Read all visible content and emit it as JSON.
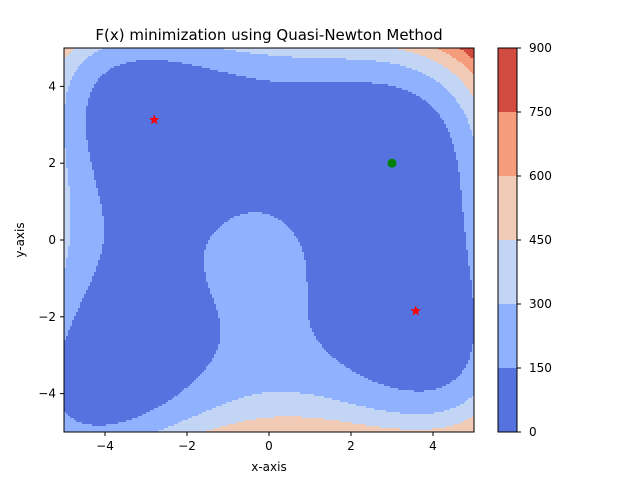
{
  "chart_data": {
    "type": "contour",
    "title": "F(x) minimization using Quasi-Newton Method",
    "xlabel": "x-axis",
    "ylabel": "y-axis",
    "xlim": [
      -5,
      5
    ],
    "ylim": [
      -5,
      5
    ],
    "x_ticks": [
      -4,
      -2,
      0,
      2,
      4
    ],
    "y_ticks": [
      -4,
      -2,
      0,
      2,
      4
    ],
    "grid": false,
    "function": "(x^2 + y - 11)^2 + (x + y^2 - 7)^2",
    "contour_levels": [
      0,
      150,
      300,
      450,
      600,
      750,
      900
    ],
    "level_colors": [
      "#5572df",
      "#8fb1fe",
      "#c3d5f4",
      "#f2cbb7",
      "#f59c7d",
      "#d24b40"
    ],
    "colorbar_ticks": [
      0,
      150,
      300,
      450,
      600,
      750,
      900
    ],
    "markers": [
      {
        "label": "start point",
        "x": 3.0,
        "y": 2.0,
        "color": "#008000",
        "marker": "circle"
      },
      {
        "label": "red star marker",
        "x": -2.8,
        "y": 3.13,
        "color": "#ff0000",
        "marker": "star"
      },
      {
        "label": "red star marker",
        "x": 3.58,
        "y": -1.85,
        "color": "#ff0000",
        "marker": "star"
      }
    ]
  }
}
